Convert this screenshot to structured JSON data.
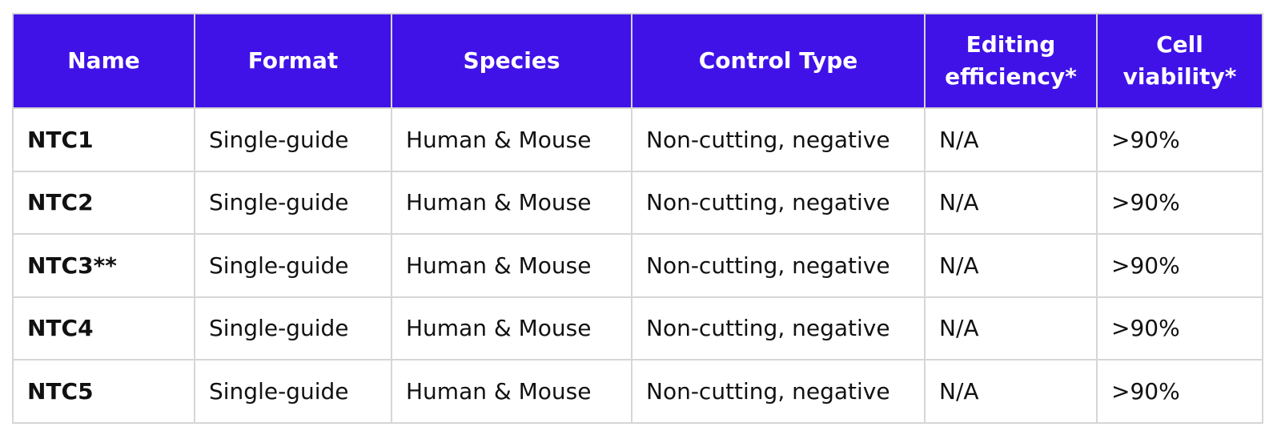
{
  "table": {
    "headers": [
      "Name",
      "Format",
      "Species",
      "Control Type",
      "Editing efficiency*",
      "Cell viability*"
    ],
    "rows": [
      [
        "NTC1",
        "Single-guide",
        "Human & Mouse",
        "Non-cutting, negative",
        "N/A",
        ">90%"
      ],
      [
        "NTC2",
        "Single-guide",
        "Human & Mouse",
        "Non-cutting, negative",
        "N/A",
        ">90%"
      ],
      [
        "NTC3**",
        "Single-guide",
        "Human & Mouse",
        "Non-cutting, negative",
        "N/A",
        ">90%"
      ],
      [
        "NTC4",
        "Single-guide",
        "Human & Mouse",
        "Non-cutting, negative",
        "N/A",
        ">90%"
      ],
      [
        "NTC5",
        "Single-guide",
        "Human & Mouse",
        "Non-cutting, negative",
        "N/A",
        ">90%"
      ]
    ]
  },
  "colors": {
    "header_background": "#4012e8",
    "header_text": "#ffffff",
    "grid_line": "#d6d6d6",
    "body_text": "#111111"
  }
}
